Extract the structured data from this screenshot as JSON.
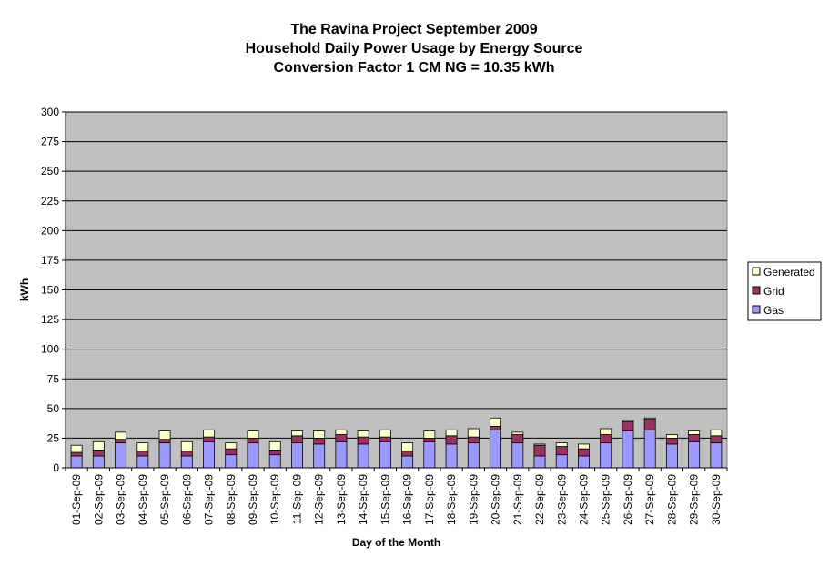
{
  "chart_data": {
    "type": "bar",
    "stacked": true,
    "title_lines": [
      "The Ravina Project September 2009",
      "Household Daily Power Usage by Energy Source",
      "Conversion Factor 1 CM NG = 10.35 kWh"
    ],
    "xlabel": "Day of the Month",
    "ylabel": "kWh",
    "ylim": [
      0,
      300
    ],
    "ytick_step": 25,
    "grid": true,
    "legend_position": "right",
    "colors": {
      "plot_background": "#C0C0C0",
      "Gas": "#9999FF",
      "Grid": "#993366",
      "Generated": "#FFFFCC"
    },
    "categories": [
      "01-Sep-09",
      "02-Sep-09",
      "03-Sep-09",
      "04-Sep-09",
      "05-Sep-09",
      "06-Sep-09",
      "07-Sep-09",
      "08-Sep-09",
      "09-Sep-09",
      "10-Sep-09",
      "11-Sep-09",
      "12-Sep-09",
      "13-Sep-09",
      "14-Sep-09",
      "15-Sep-09",
      "16-Sep-09",
      "17-Sep-09",
      "18-Sep-09",
      "19-Sep-09",
      "20-Sep-09",
      "21-Sep-09",
      "22-Sep-09",
      "23-Sep-09",
      "24-Sep-09",
      "25-Sep-09",
      "26-Sep-09",
      "27-Sep-09",
      "28-Sep-09",
      "29-Sep-09",
      "30-Sep-09"
    ],
    "series": [
      {
        "name": "Gas",
        "values": [
          10,
          10,
          21,
          10,
          21,
          10,
          22,
          11,
          21,
          11,
          21,
          20,
          22,
          20,
          22,
          10,
          22,
          20,
          21,
          32,
          21,
          10,
          11,
          10,
          21,
          31,
          32,
          20,
          22,
          21
        ]
      },
      {
        "name": "Grid",
        "values": [
          3,
          5,
          3,
          4,
          3,
          4,
          4,
          5,
          4,
          4,
          6,
          5,
          6,
          6,
          4,
          4,
          3,
          7,
          5,
          3,
          7,
          9,
          7,
          6,
          7,
          8,
          9,
          5,
          6,
          6
        ]
      },
      {
        "name": "Generated",
        "values": [
          6,
          7,
          6,
          7,
          7,
          8,
          6,
          5,
          6,
          7,
          4,
          6,
          4,
          5,
          6,
          7,
          6,
          5,
          7,
          7,
          2,
          1,
          3,
          4,
          5,
          1,
          1,
          3,
          3,
          5
        ]
      }
    ],
    "legend_order": [
      "Generated",
      "Grid",
      "Gas"
    ]
  }
}
